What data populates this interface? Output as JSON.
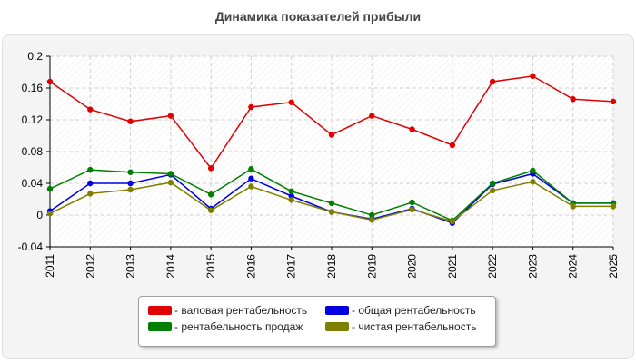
{
  "chart_data": {
    "type": "line",
    "title": "Динамика показателей прибыли",
    "xlabel": "",
    "ylabel": "",
    "categories": [
      "2011",
      "2012",
      "2013",
      "2014",
      "2015",
      "2016",
      "2017",
      "2018",
      "2019",
      "2020",
      "2021",
      "2022",
      "2023",
      "2024",
      "2025"
    ],
    "ylim": [
      -0.04,
      0.2
    ],
    "yticks": [
      "-0.04",
      "0",
      "0.04",
      "0.08",
      "0.12",
      "0.16",
      "0.2"
    ],
    "grid": true,
    "legend_position": "bottom",
    "series": [
      {
        "name": "- валовая рентабельность",
        "color": "#e00000",
        "values": [
          0.168,
          0.133,
          0.118,
          0.125,
          0.059,
          0.136,
          0.142,
          0.101,
          0.125,
          0.108,
          0.088,
          0.168,
          0.175,
          0.146,
          0.143
        ]
      },
      {
        "name": "- общая рентабельность",
        "color": "#0000e0",
        "values": [
          0.005,
          0.04,
          0.04,
          0.051,
          0.008,
          0.046,
          0.024,
          0.004,
          -0.005,
          0.008,
          -0.01,
          0.039,
          0.052,
          0.015,
          0.015
        ]
      },
      {
        "name": "- рентабельность продаж",
        "color": "#008000",
        "values": [
          0.033,
          0.057,
          0.054,
          0.052,
          0.026,
          0.058,
          0.03,
          0.015,
          0.0,
          0.016,
          -0.007,
          0.04,
          0.056,
          0.015,
          0.015
        ]
      },
      {
        "name": "- чистая рентабельность",
        "color": "#808000",
        "values": [
          0.002,
          0.027,
          0.032,
          0.041,
          0.006,
          0.036,
          0.019,
          0.004,
          -0.006,
          0.007,
          -0.008,
          0.031,
          0.042,
          0.011,
          0.011
        ]
      }
    ]
  }
}
